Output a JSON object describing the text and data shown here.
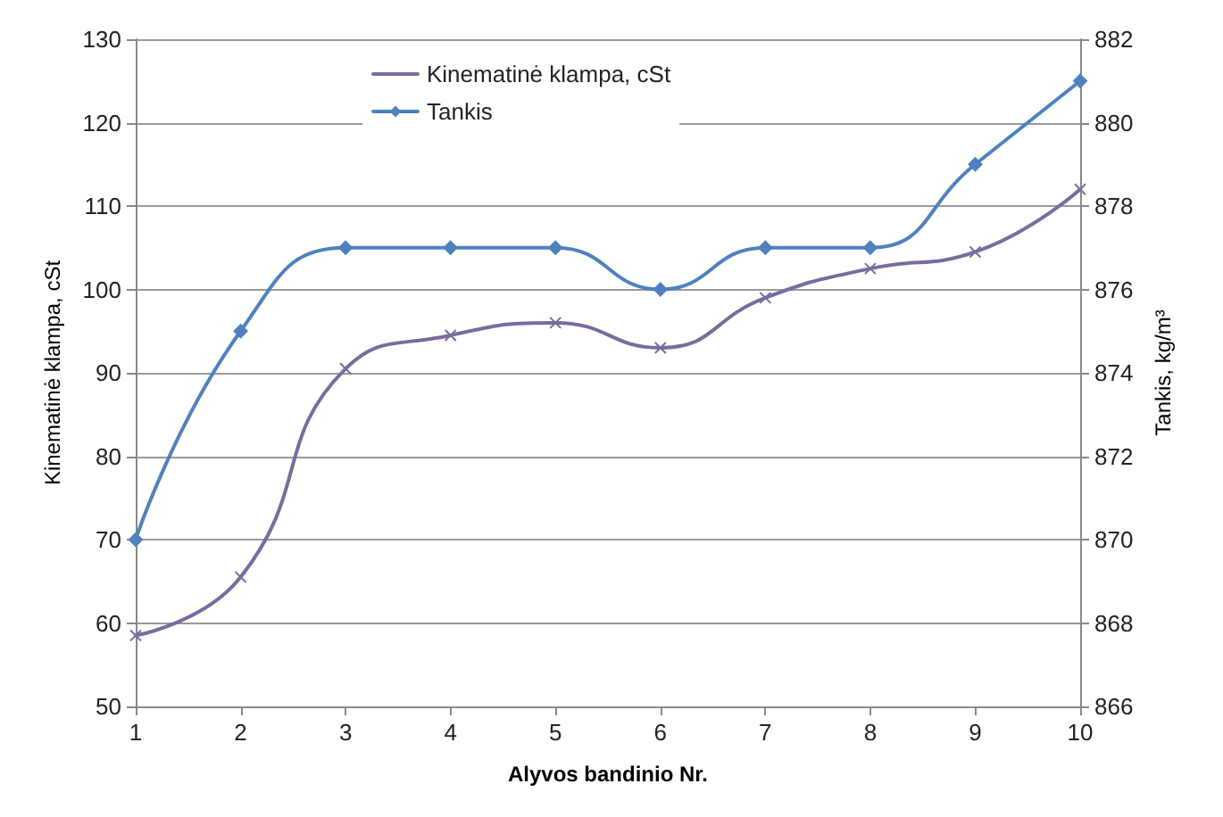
{
  "chart_data": {
    "type": "line",
    "xlabel": "Alyvos bandinio Nr.",
    "ylabel": "Kinematinė klampa, cSt",
    "y2label": "Tankis, kg/m³",
    "categories": [
      "1",
      "2",
      "3",
      "4",
      "5",
      "6",
      "7",
      "8",
      "9",
      "10"
    ],
    "series": [
      {
        "name": "Kinematinė klampa, cSt",
        "color": "#7a6b9e",
        "marker": "cross",
        "values": [
          58.5,
          65.5,
          90.5,
          94.5,
          96,
          93,
          99,
          102.5,
          104.5,
          112
        ]
      },
      {
        "name": "Tankis",
        "color": "#4f81bd",
        "marker": "diamond",
        "axis": "y2",
        "values": [
          870,
          875,
          877,
          877,
          877,
          876,
          877,
          877,
          879,
          881
        ]
      }
    ],
    "ylim": [
      50,
      130
    ],
    "yticks": [
      50,
      60,
      70,
      80,
      90,
      100,
      110,
      120,
      130
    ],
    "y2lim": [
      866,
      882
    ],
    "y2ticks": [
      866,
      868,
      870,
      872,
      874,
      876,
      878,
      880,
      882
    ],
    "grid": "y",
    "legend": "top"
  }
}
